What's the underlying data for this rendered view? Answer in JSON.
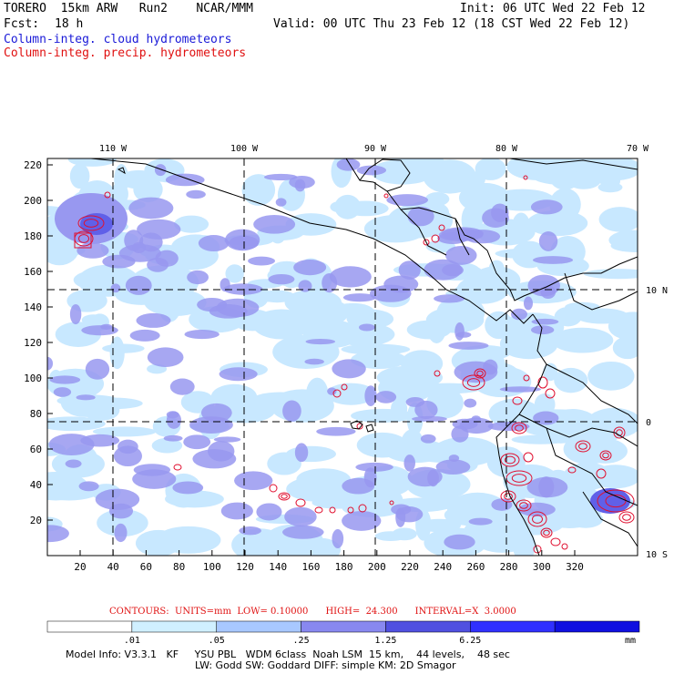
{
  "header": {
    "model": "TORERO  15km ARW   Run2    NCAR/MMM",
    "init": "Init: 06 UTC Wed 22 Feb 12",
    "fcst_label": "Fcst:",
    "fcst_value": "18 h",
    "valid": "Valid: 00 UTC Thu 23 Feb 12 (18 CST Wed 22 Feb 12)",
    "field1": "Column-integ. cloud hydrometeors",
    "field2": "Column-integ. precip. hydrometeors"
  },
  "map": {
    "lon_labels": [
      "110 W",
      "100 W",
      "90 W",
      "80 W",
      "70 W"
    ],
    "lat_labels": [
      "10 N",
      "0",
      "10 S"
    ],
    "y_ticks": [
      "220",
      "200",
      "180",
      "160",
      "140",
      "120",
      "100",
      "80",
      "60",
      "40",
      "20"
    ],
    "x_ticks": [
      "20",
      "40",
      "60",
      "80",
      "100",
      "120",
      "140",
      "160",
      "180",
      "200",
      "220",
      "240",
      "260",
      "280",
      "300",
      "320"
    ],
    "colors": {
      "fill_light": "#c8e8ff",
      "fill_mid": "#9898f0",
      "fill_dark": "#6060e8",
      "contour": "#e01030",
      "coast": "#000000"
    }
  },
  "contours_text": "CONTOURS:  UNITS=mm  LOW= 0.10000      HIGH=  24.300      INTERVAL=X  3.0000",
  "colorbar": {
    "labels": [
      ".01",
      ".05",
      ".25",
      "1.25",
      "6.25"
    ],
    "unit": "mm",
    "colors": [
      "#ffffff",
      "#d0f0ff",
      "#a8c8ff",
      "#8888f0",
      "#5050e0",
      "#3030ff",
      "#1010e0"
    ]
  },
  "model_info": {
    "line1": "Model Info: V3.3.1   KF     YSU PBL   WDM 6class  Noah LSM  15 km,    44 levels,    48 sec",
    "line2": "LW: Godd SW: Goddard DIFF: simple KM: 2D Smagor"
  }
}
